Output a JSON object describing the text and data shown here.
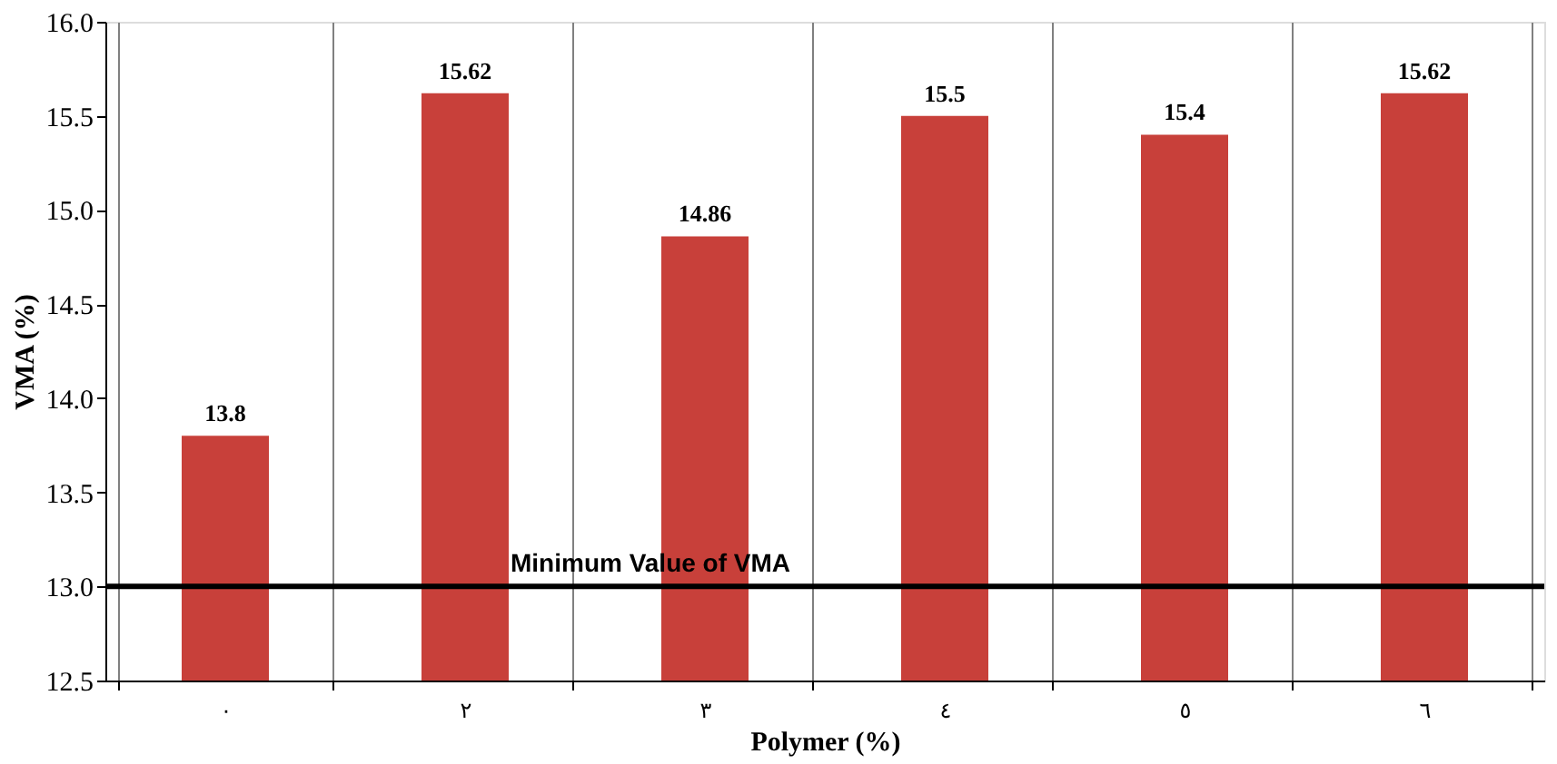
{
  "chart_data": {
    "type": "bar",
    "xlabel": "Polymer (%)",
    "ylabel": "VMA (%)",
    "categories": [
      "٠",
      "٢",
      "٣",
      "٤",
      "٥",
      "٦"
    ],
    "values": [
      13.8,
      15.62,
      14.86,
      15.5,
      15.4,
      15.62
    ],
    "color": "#c8403a",
    "ylim": [
      12.5,
      16.0
    ],
    "yticks": [
      {
        "value": 12.5,
        "label": "12.5"
      },
      {
        "value": 13,
        "label": "13.0"
      },
      {
        "value": 13.5,
        "label": "13.5"
      },
      {
        "value": 14,
        "label": "14.0"
      },
      {
        "value": 14.5,
        "label": "14.5"
      },
      {
        "value": 15,
        "label": "15.0"
      },
      {
        "value": 15.5,
        "label": "15.5"
      },
      {
        "value": 16,
        "label": "16.0"
      }
    ],
    "ref_lines": [
      {
        "axis": "y",
        "value": 13,
        "label": "Minimum Value of VMA",
        "color": "#000000"
      }
    ],
    "data_labels": true,
    "grid": "x"
  }
}
